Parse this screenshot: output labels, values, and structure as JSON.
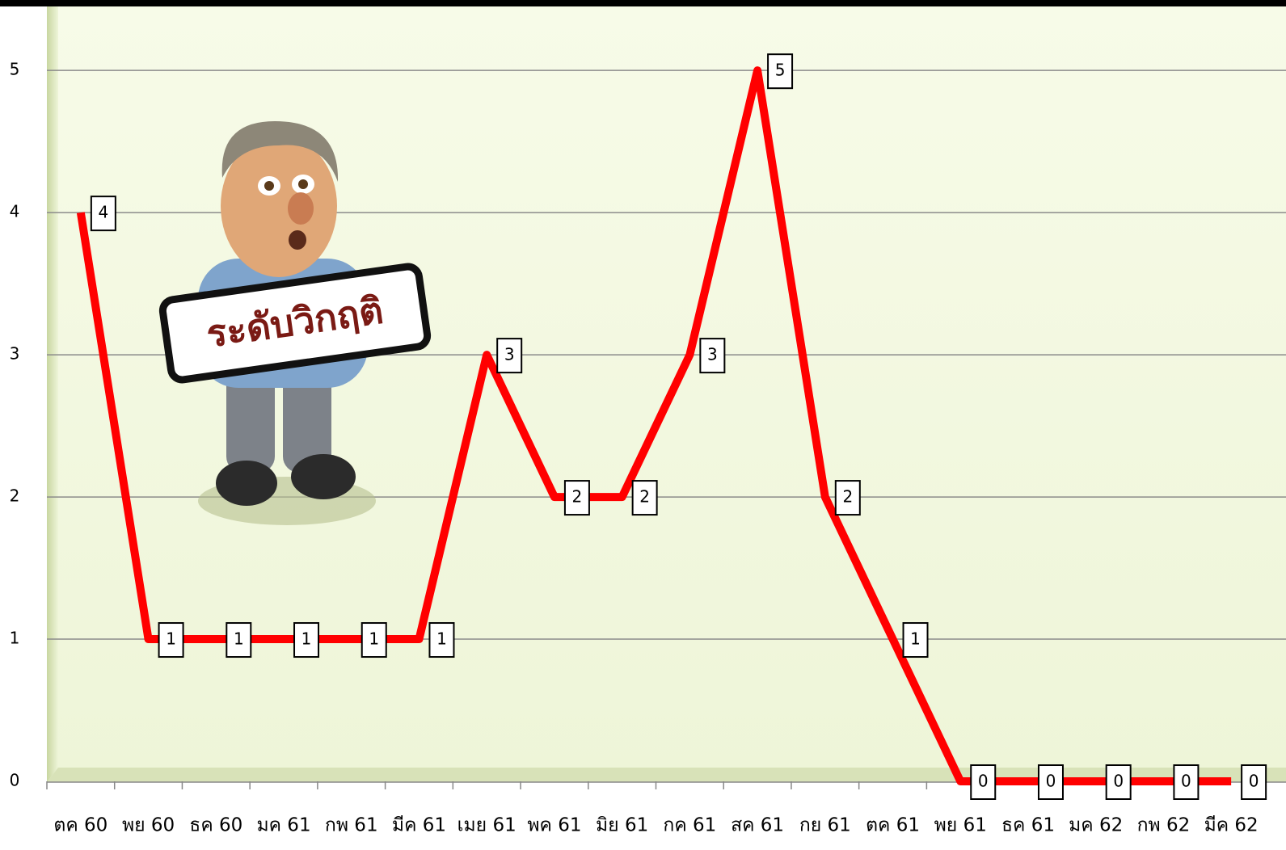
{
  "chart_data": {
    "type": "line",
    "annotation": "ระดับวิกฤติ",
    "categories": [
      "ตค 60",
      "พย 60",
      "ธค 60",
      "มค 61",
      "กพ 61",
      "มีค 61",
      "เมย 61",
      "พค 61",
      "มิย 61",
      "กค 61",
      "สค 61",
      "กย 61",
      "ตค 61",
      "พย 61",
      "ธค 61",
      "มค 62",
      "กพ 62",
      "มีค 62"
    ],
    "series": [
      {
        "color": "#ff0000",
        "values": [
          4,
          1,
          1,
          1,
          1,
          1,
          3,
          2,
          2,
          3,
          5,
          2,
          1,
          0,
          0,
          0,
          0,
          0
        ]
      }
    ],
    "ylim": [
      0,
      5.45
    ],
    "yticks": [
      0,
      1,
      2,
      3,
      4,
      5
    ],
    "grid": true
  }
}
